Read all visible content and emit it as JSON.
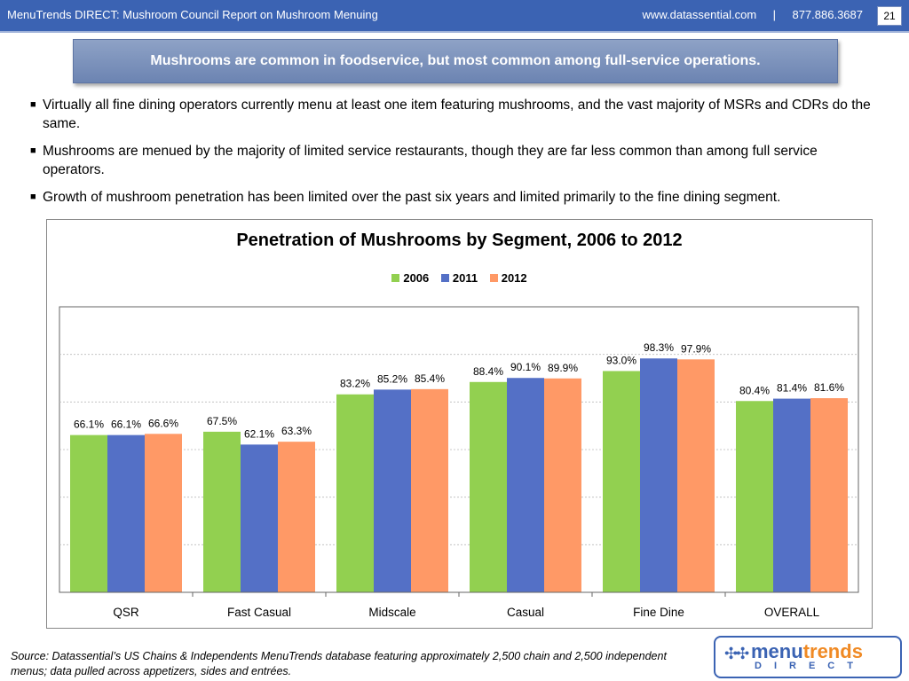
{
  "header": {
    "title": "MenuTrends DIRECT: Mushroom Council Report on Mushroom Menuing",
    "website": "www.datassential.com",
    "separator": "|",
    "phone": "877.886.3687",
    "page_number": "21"
  },
  "headline": "Mushrooms are common in foodservice, but most common among full-service operations.",
  "bullets": [
    "Virtually all fine dining operators currently menu at least one item featuring mushrooms, and the vast majority of MSRs and CDRs do the same.",
    "Mushrooms are menued by the majority of limited service restaurants, though they are far less common than among full service operators.",
    "Growth of mushroom penetration has been limited over the past six years and limited primarily to the fine dining segment."
  ],
  "chart_data": {
    "type": "bar",
    "title": "Penetration of Mushrooms by Segment, 2006 to 2012",
    "categories": [
      "QSR",
      "Fast Casual",
      "Midscale",
      "Casual",
      "Fine Dine",
      "OVERALL"
    ],
    "series": [
      {
        "name": "2006",
        "color": "#92d050",
        "values": [
          66.1,
          67.5,
          83.2,
          88.4,
          93.0,
          80.4
        ],
        "labels": [
          "66.1%",
          "67.5%",
          "83.2%",
          "88.4%",
          "93.0%",
          "80.4%"
        ]
      },
      {
        "name": "2011",
        "color": "#5470c6",
        "values": [
          66.1,
          62.1,
          85.2,
          90.1,
          98.3,
          81.4
        ],
        "labels": [
          "66.1%",
          "62.1%",
          "85.2%",
          "90.1%",
          "98.3%",
          "81.4%"
        ]
      },
      {
        "name": "2012",
        "color": "#ff9966",
        "values": [
          66.6,
          63.3,
          85.4,
          89.9,
          97.9,
          81.6
        ],
        "labels": [
          "66.6%",
          "63.3%",
          "85.4%",
          "89.9%",
          "97.9%",
          "81.6%"
        ]
      }
    ],
    "ylim": [
      0,
      120
    ],
    "grid": true,
    "legend_position": "top",
    "xlabel": "",
    "ylabel": ""
  },
  "source": "Source: Datassential’s US Chains & Independents MenuTrends database featuring approximately 2,500 chain and 2,500 independent menus; data pulled across appetizers, sides and entrées.",
  "logo": {
    "word_part1": "menu",
    "word_part2": "trends",
    "subtitle": "DIRECT"
  }
}
